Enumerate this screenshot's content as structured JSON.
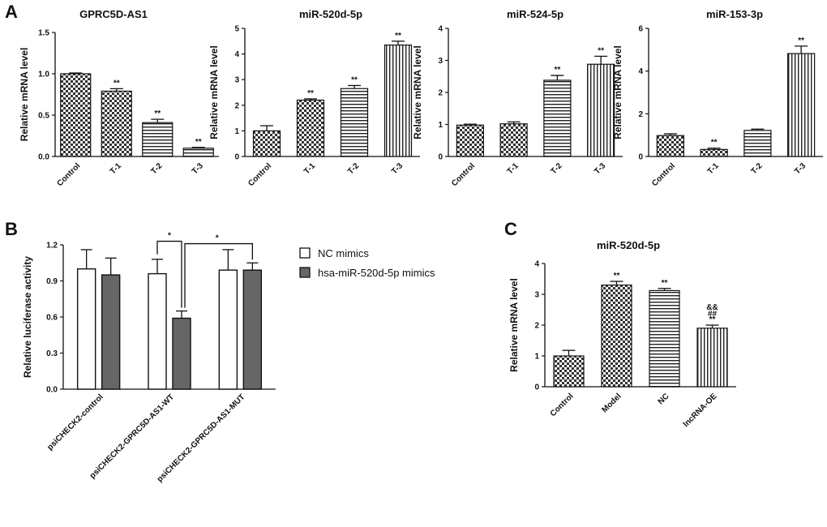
{
  "panel_labels": [
    "A",
    "B",
    "C"
  ],
  "chart_data": [
    {
      "id": "A1",
      "panel": "A",
      "type": "bar",
      "title": "GPRC5D-AS1",
      "ylabel": "Relative mRNA level",
      "xlabel": "",
      "ylim": [
        0,
        1.5
      ],
      "yticks": [
        "0.0",
        "0.5",
        "1.0",
        "1.5"
      ],
      "categories": [
        "Control",
        "T-1",
        "T-2",
        "T-3"
      ],
      "values": [
        1.0,
        0.79,
        0.41,
        0.1
      ],
      "errors": [
        0.01,
        0.03,
        0.04,
        0.01
      ],
      "significance": [
        "",
        "**",
        "**",
        "**"
      ],
      "patterns": [
        "checker",
        "checker",
        "hlines",
        "hlines"
      ]
    },
    {
      "id": "A2",
      "panel": "A",
      "type": "bar",
      "title": "miR-520d-5p",
      "ylabel": "Relative mRNA level",
      "xlabel": "",
      "ylim": [
        0,
        5
      ],
      "yticks": [
        "0",
        "1",
        "2",
        "3",
        "4",
        "5"
      ],
      "categories": [
        "Control",
        "T-1",
        "T-2",
        "T-3"
      ],
      "values": [
        1.0,
        2.2,
        2.65,
        4.35
      ],
      "errors": [
        0.2,
        0.05,
        0.12,
        0.15
      ],
      "significance": [
        "",
        "**",
        "**",
        "**"
      ],
      "patterns": [
        "checker",
        "checker",
        "hlines",
        "vlines"
      ]
    },
    {
      "id": "A3",
      "panel": "A",
      "type": "bar",
      "title": "miR-524-5p",
      "ylabel": "Relative mRNA level",
      "xlabel": "",
      "ylim": [
        0,
        4
      ],
      "yticks": [
        "0",
        "1",
        "2",
        "3",
        "4"
      ],
      "categories": [
        "Control",
        "T-1",
        "T-2",
        "T-3"
      ],
      "values": [
        0.98,
        1.02,
        2.38,
        2.88
      ],
      "errors": [
        0.03,
        0.06,
        0.15,
        0.25
      ],
      "significance": [
        "",
        "",
        "**",
        "**"
      ],
      "patterns": [
        "checker",
        "checker",
        "hlines",
        "vlines"
      ]
    },
    {
      "id": "A4",
      "panel": "A",
      "type": "bar",
      "title": "miR-153-3p",
      "ylabel": "Relative mRNA level",
      "xlabel": "",
      "ylim": [
        0,
        6
      ],
      "yticks": [
        "0",
        "2",
        "4",
        "6"
      ],
      "categories": [
        "Control",
        "T-1",
        "T-2",
        "T-3"
      ],
      "values": [
        0.98,
        0.33,
        1.22,
        4.82
      ],
      "errors": [
        0.08,
        0.06,
        0.06,
        0.35
      ],
      "significance": [
        "",
        "**",
        "",
        "**"
      ],
      "patterns": [
        "checker",
        "checker",
        "hlines",
        "vlines"
      ]
    },
    {
      "id": "B",
      "panel": "B",
      "type": "bar",
      "title": "",
      "ylabel": "Relative luciferase activity",
      "xlabel": "",
      "ylim": [
        0,
        1.2
      ],
      "yticks": [
        "0.0",
        "0.3",
        "0.6",
        "0.9",
        "1.2"
      ],
      "categories": [
        "psiCHECK2-control",
        "psiCHECK2-GPRC5D-AS1-WT",
        "psiCHECK2-GPRC5D-AS1-MUT"
      ],
      "series": [
        {
          "name": "NC mimics",
          "color": "#ffffff",
          "values": [
            1.0,
            0.96,
            0.99
          ],
          "errors": [
            0.16,
            0.12,
            0.17
          ]
        },
        {
          "name": "hsa-miR-520d-5p mimics",
          "color": "#666666",
          "values": [
            0.95,
            0.59,
            0.99
          ],
          "errors": [
            0.14,
            0.06,
            0.06
          ]
        }
      ],
      "brackets": [
        {
          "label": "*",
          "from": "psiCHECK2-GPRC5D-AS1-WT / NC mimics",
          "to": "psiCHECK2-GPRC5D-AS1-WT / hsa-miR-520d-5p mimics"
        },
        {
          "label": "*",
          "from": "psiCHECK2-GPRC5D-AS1-WT / hsa-miR-520d-5p mimics",
          "to": "psiCHECK2-GPRC5D-AS1-MUT / hsa-miR-520d-5p mimics"
        }
      ],
      "legend_position": "right"
    },
    {
      "id": "C",
      "panel": "C",
      "type": "bar",
      "title": "miR-520d-5p",
      "ylabel": "Relative mRNA level",
      "xlabel": "",
      "ylim": [
        0,
        4
      ],
      "yticks": [
        "0",
        "1",
        "2",
        "3",
        "4"
      ],
      "categories": [
        "Control",
        "Model",
        "NC",
        "lncRNA-OE"
      ],
      "values": [
        1.0,
        3.3,
        3.12,
        1.9
      ],
      "errors": [
        0.18,
        0.12,
        0.07,
        0.1
      ],
      "significance": [
        "",
        "**",
        "**",
        "**"
      ],
      "extra_marks": [
        "",
        "",
        "",
        "&&"
      ],
      "extra_marks2": [
        "",
        "",
        "",
        "##"
      ],
      "patterns": [
        "checker",
        "checker",
        "hlines",
        "vlines"
      ]
    }
  ]
}
